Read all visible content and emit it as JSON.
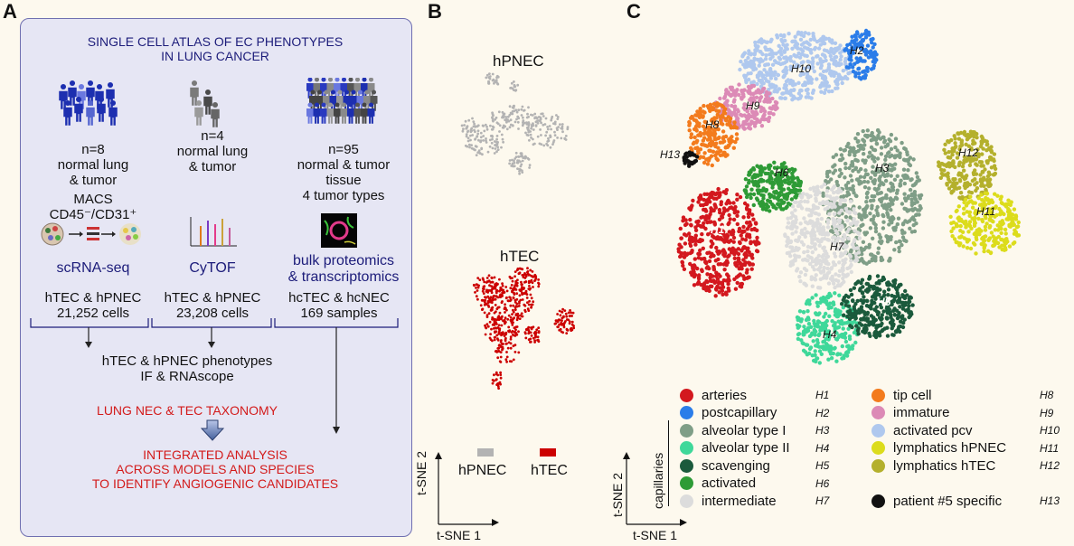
{
  "panels": {
    "a": "A",
    "b": "B",
    "c": "C"
  },
  "panel_a": {
    "title_line1": "SINGLE CELL ATLAS OF EC PHENOTYPES",
    "title_line2": "IN LUNG CANCER",
    "col1": {
      "n": "n=8",
      "desc1": "normal lung",
      "desc2": "& tumor",
      "macs1": "MACS",
      "macs2": "CD45⁻/CD31⁺",
      "method": "scRNA-seq",
      "cells1": "hTEC & hPNEC",
      "cells2": "21,252 cells"
    },
    "col2": {
      "n": "n=4",
      "desc1": "normal lung",
      "desc2": "& tumor",
      "method": "CyTOF",
      "cells1": "hTEC & hPNEC",
      "cells2": "23,208 cells"
    },
    "col3": {
      "n": "n=95",
      "desc1": "normal & tumor",
      "desc2": "tissue",
      "desc3": "4 tumor types",
      "method1": "bulk proteomics",
      "method2": "& transcriptomics",
      "cells1": "hcTEC & hcNEC",
      "cells2": "169 samples"
    },
    "phenotypes1": "hTEC & hPNEC phenotypes",
    "phenotypes2": "IF & RNAscope",
    "taxonomy": "LUNG NEC & TEC TAXONOMY",
    "integrated1": "INTEGRATED ANALYSIS",
    "integrated2": "ACROSS MODELS AND SPECIES",
    "integrated3": "TO IDENTIFY ANGIOGENIC CANDIDATES"
  },
  "panel_b": {
    "label_top": "hPNEC",
    "label_bottom": "hTEC",
    "legend": [
      {
        "label": "hPNEC",
        "color": "#b3b3b3"
      },
      {
        "label": "hTEC",
        "color": "#cc0000"
      }
    ],
    "x_axis": "t-SNE 1",
    "y_axis": "t-SNE 2"
  },
  "panel_c": {
    "x_axis": "t-SNE 1",
    "y_axis": "t-SNE 2",
    "bracket_label": "capillaries",
    "clusters": [
      {
        "code": "H1",
        "label": "arteries",
        "color": "#d3181e"
      },
      {
        "code": "H2",
        "label": "postcapillary",
        "color": "#2b7de9"
      },
      {
        "code": "H3",
        "label": "alveolar type I",
        "color": "#7f9e87"
      },
      {
        "code": "H4",
        "label": "alveolar type II",
        "color": "#3fd89a"
      },
      {
        "code": "H5",
        "label": "scavenging",
        "color": "#1b5a3c"
      },
      {
        "code": "H6",
        "label": "activated",
        "color": "#2e9b36"
      },
      {
        "code": "H7",
        "label": "intermediate",
        "color": "#dcdcdc"
      },
      {
        "code": "H8",
        "label": "tip cell",
        "color": "#f37b1d"
      },
      {
        "code": "H9",
        "label": "immature",
        "color": "#dc8ab6"
      },
      {
        "code": "H10",
        "label": "activated pcv",
        "color": "#afc8ee"
      },
      {
        "code": "H11",
        "label": "lymphatics hPNEC",
        "color": "#dcdc1c"
      },
      {
        "code": "H12",
        "label": "lymphatics hTEC",
        "color": "#b4b02c"
      },
      {
        "code": "H13",
        "label": "patient #5 specific",
        "color": "#111111"
      }
    ]
  }
}
